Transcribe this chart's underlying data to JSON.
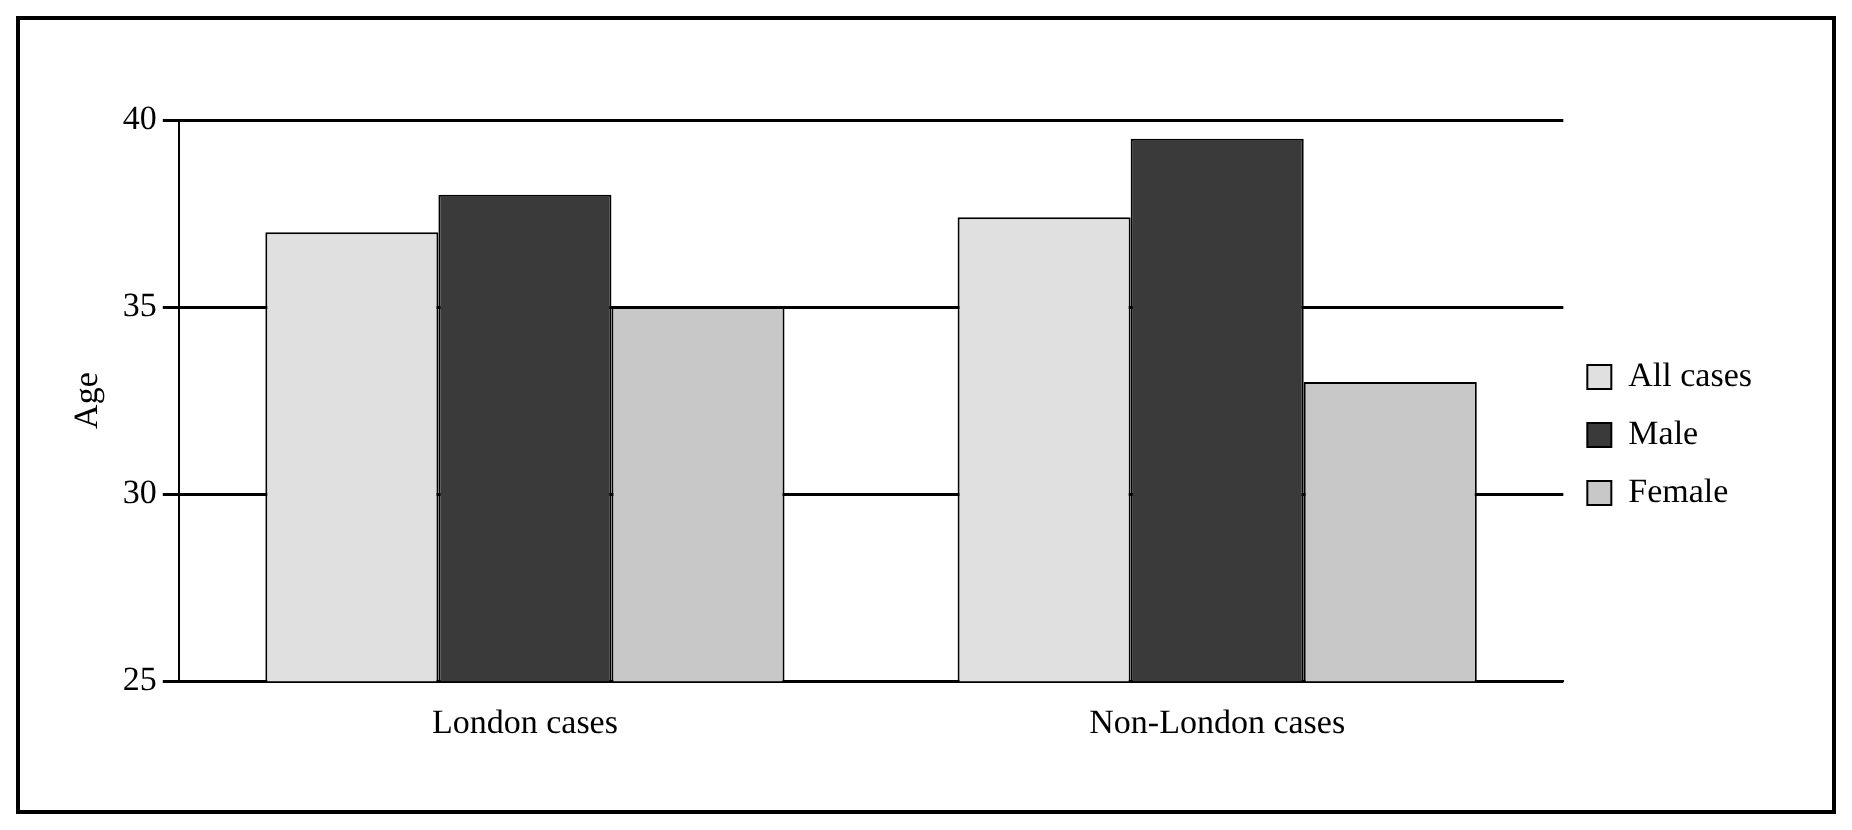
{
  "chart_data": {
    "type": "bar",
    "ylabel": "Age",
    "categories": [
      "London cases",
      "Non-London cases"
    ],
    "series": [
      {
        "name": "All cases",
        "color": "#e0e0e0",
        "values": [
          37.0,
          37.4
        ]
      },
      {
        "name": "Male",
        "color": "#3a3a3a",
        "values": [
          38.0,
          39.5
        ]
      },
      {
        "name": "Female",
        "color": "#c8c8c8",
        "values": [
          35.0,
          33.0
        ]
      }
    ],
    "ylim": [
      25,
      40
    ],
    "yticks": [
      25,
      30,
      35,
      40
    ],
    "grid": "y",
    "legend": "right"
  }
}
